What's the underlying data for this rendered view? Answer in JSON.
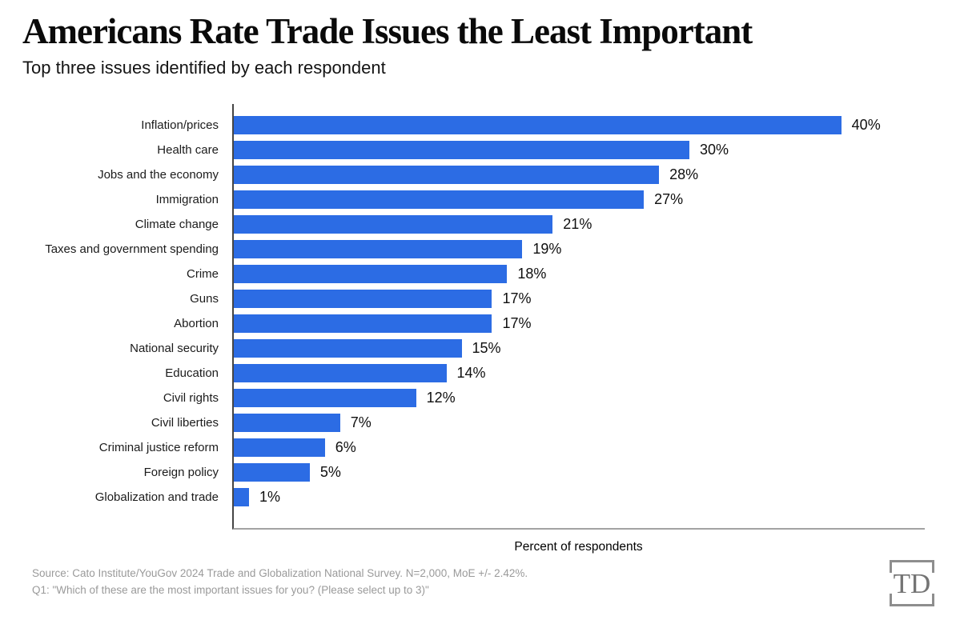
{
  "header": {
    "title": "Americans Rate Trade Issues the Least Important",
    "subtitle": "Top three issues identified by each respondent"
  },
  "chart_data": {
    "type": "bar",
    "orientation": "horizontal",
    "title": "Americans Rate Trade Issues the Least Important",
    "subtitle": "Top three issues identified by each respondent",
    "categories": [
      "Inflation/prices",
      "Health care",
      "Jobs and the economy",
      "Immigration",
      "Climate change",
      "Taxes and government spending",
      "Crime",
      "Guns",
      "Abortion",
      "National security",
      "Education",
      "Civil rights",
      "Civil liberties",
      "Criminal justice reform",
      "Foreign policy",
      "Globalization and trade"
    ],
    "values": [
      40,
      30,
      28,
      27,
      21,
      19,
      18,
      17,
      17,
      15,
      14,
      12,
      7,
      6,
      5,
      1
    ],
    "value_suffix": "%",
    "xlabel": "Percent of respondents",
    "ylabel": "",
    "xlim": [
      0,
      45.5
    ],
    "grid": false,
    "legend": false,
    "bar_color": "#2c6ce4",
    "axis_line_color": "#454545",
    "baseline_color": "#a3a3a3"
  },
  "footer": {
    "source_line1": "Source: Cato Institute/YouGov 2024 Trade and Globalization National Survey. N=2,000, MoE +/- 2.42%.",
    "source_line2": "Q1: \"Which of these are the most important issues for you? (Please select up to 3)\"",
    "logo_text": "TD"
  }
}
